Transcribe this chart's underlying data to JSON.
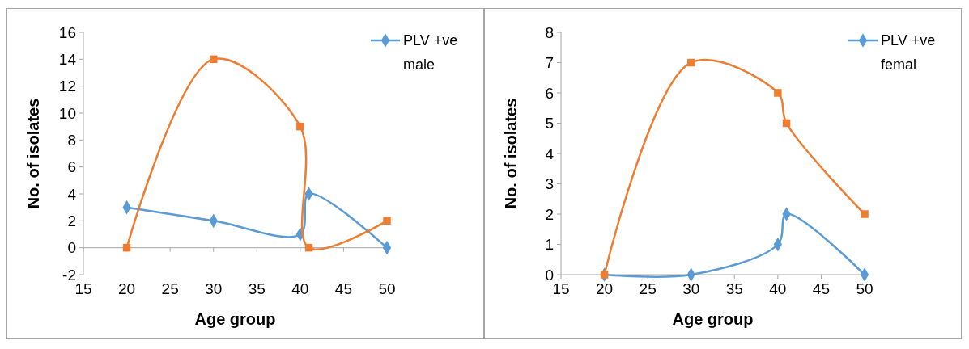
{
  "chart_data": [
    {
      "type": "line",
      "xlabel": "Age group",
      "ylabel": "No. of isolates",
      "xlim": [
        15,
        50
      ],
      "xticks": [
        15,
        20,
        25,
        30,
        35,
        40,
        45,
        50
      ],
      "ylim": [
        -2,
        16
      ],
      "yticks": [
        -2,
        0,
        2,
        4,
        6,
        8,
        10,
        12,
        14,
        16
      ],
      "legend": "top right",
      "grid": false,
      "x": [
        20,
        30,
        40,
        41,
        50
      ],
      "series": [
        {
          "name": "PLV +ve male",
          "color": "#5b9bd5",
          "marker": "diamond",
          "values": [
            3,
            2,
            1,
            4,
            0
          ]
        },
        {
          "color": "#ed7d31",
          "marker": "square",
          "values": [
            0,
            14,
            9,
            0,
            2
          ]
        }
      ]
    },
    {
      "type": "line",
      "xlabel": "Age group",
      "ylabel": "No. of isolates",
      "xlim": [
        15,
        50
      ],
      "xticks": [
        15,
        20,
        25,
        30,
        35,
        40,
        45,
        50
      ],
      "ylim": [
        0,
        8
      ],
      "yticks": [
        0,
        1,
        2,
        3,
        4,
        5,
        6,
        7,
        8
      ],
      "legend": "top right",
      "grid": false,
      "x": [
        20,
        30,
        40,
        41,
        50
      ],
      "series": [
        {
          "name": "PLV +ve femal",
          "color": "#5b9bd5",
          "marker": "diamond",
          "values": [
            0,
            0,
            1,
            2,
            0
          ]
        },
        {
          "color": "#ed7d31",
          "marker": "square",
          "values": [
            0,
            7,
            6,
            5,
            2
          ]
        }
      ]
    }
  ]
}
